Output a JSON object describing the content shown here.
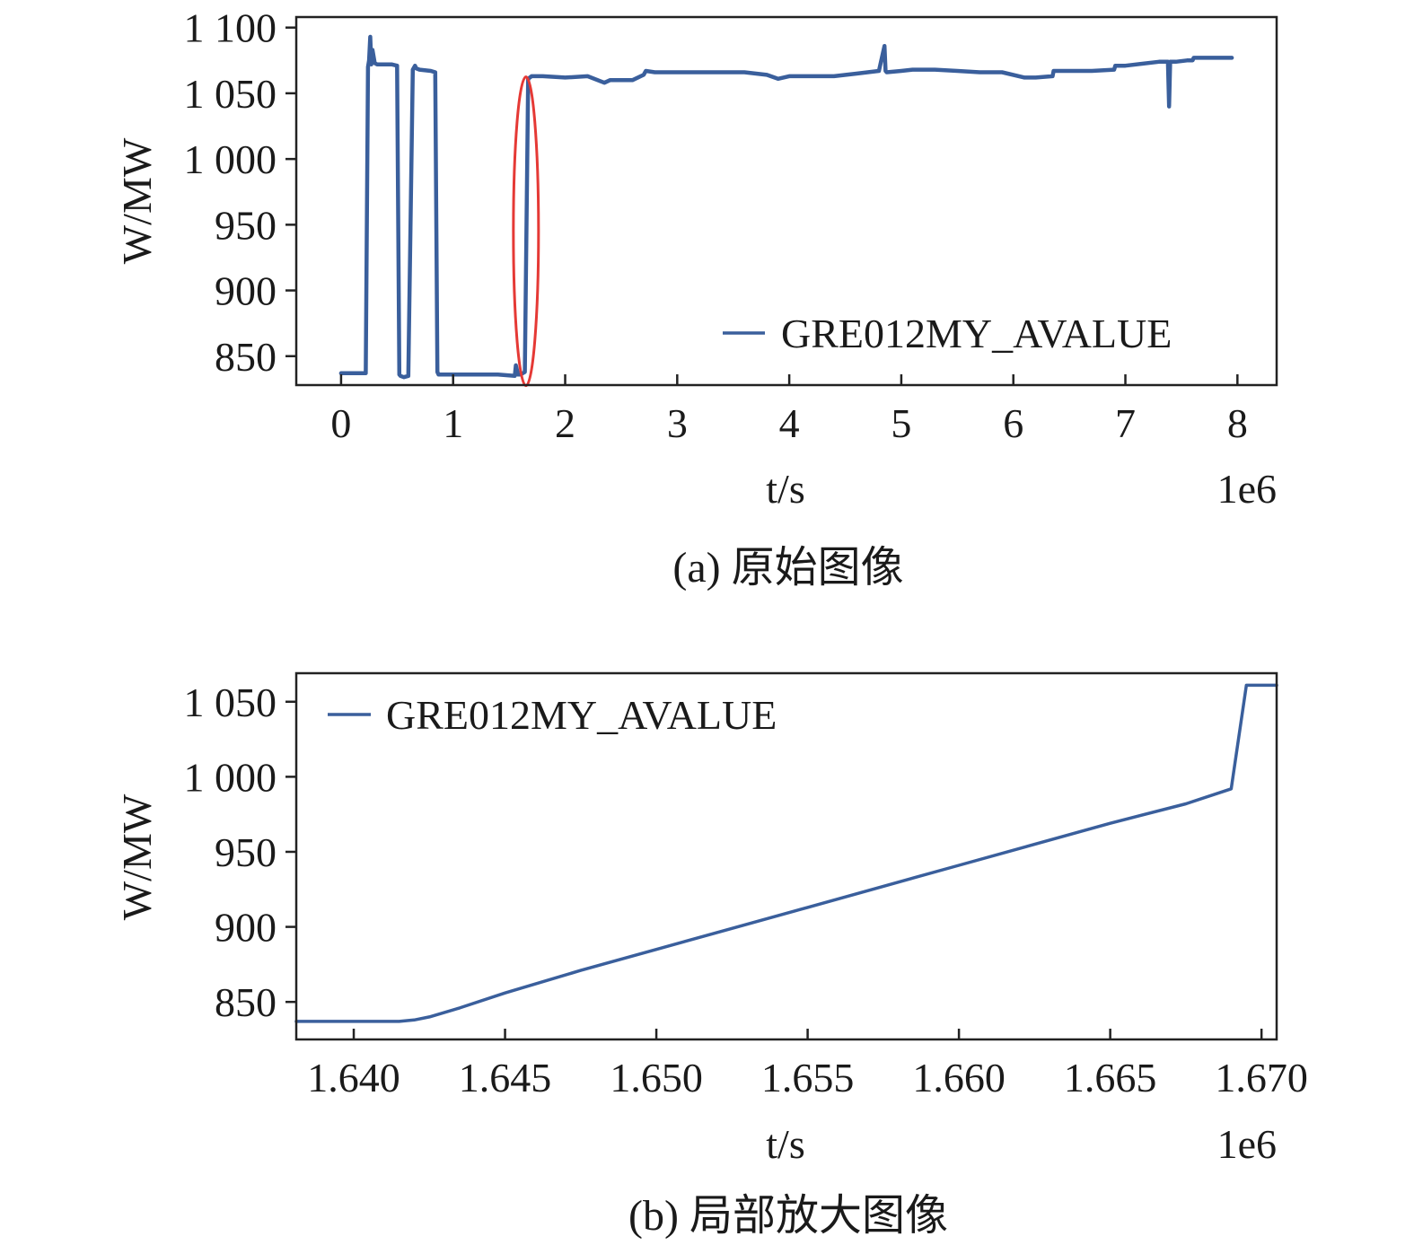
{
  "figure": {
    "caption_a": "(a) 原始图像",
    "caption_b": "(b) 局部放大图像"
  },
  "chart_data": [
    {
      "type": "line",
      "panel": "a",
      "xlabel": "t/s",
      "ylabel": "W/MW",
      "x_scale_label": "1e6",
      "xlim": [
        -0.4,
        8.35
      ],
      "ylim": [
        828,
        1108
      ],
      "xticks": [
        0,
        1,
        2,
        3,
        4,
        5,
        6,
        7,
        8
      ],
      "xtick_labels": [
        "0",
        "1",
        "2",
        "3",
        "4",
        "5",
        "6",
        "7",
        "8"
      ],
      "yticks": [
        850,
        900,
        950,
        1000,
        1050,
        1100
      ],
      "ytick_labels": [
        "850",
        "900",
        "950",
        "1 000",
        "1 050",
        "1 100"
      ],
      "legend": {
        "position": "lower-right",
        "entries": [
          "GRE012MY_AVALUE"
        ]
      },
      "highlight_ellipse": {
        "x": 1.65,
        "y": 945,
        "color": "#e53935"
      },
      "series": [
        {
          "name": "GRE012MY_AVALUE",
          "color": "#3a5f9c",
          "x": [
            0.0,
            0.22,
            0.24,
            0.25,
            0.26,
            0.27,
            0.28,
            0.3,
            0.32,
            0.4,
            0.45,
            0.5,
            0.52,
            0.53,
            0.56,
            0.6,
            0.64,
            0.66,
            0.67,
            0.7,
            0.8,
            0.84,
            0.86,
            0.87,
            0.9,
            1.0,
            1.2,
            1.4,
            1.55,
            1.56,
            1.58,
            1.6,
            1.64,
            1.67,
            1.7,
            1.8,
            2.0,
            2.2,
            2.35,
            2.4,
            2.5,
            2.6,
            2.7,
            2.72,
            2.8,
            3.0,
            3.2,
            3.4,
            3.6,
            3.8,
            3.9,
            4.0,
            4.2,
            4.4,
            4.6,
            4.8,
            4.85,
            4.86,
            4.87,
            5.0,
            5.1,
            5.3,
            5.5,
            5.7,
            5.9,
            6.1,
            6.2,
            6.35,
            6.36,
            6.5,
            6.7,
            6.9,
            6.91,
            7.0,
            7.3,
            7.38,
            7.39,
            7.4,
            7.45,
            7.55,
            7.6,
            7.61,
            7.75,
            7.9,
            7.95
          ],
          "y": [
            837,
            837,
            1070,
            1075,
            1093,
            1072,
            1083,
            1073,
            1072,
            1072,
            1072,
            1071,
            836,
            835,
            834,
            835,
            1068,
            1071,
            1069,
            1068,
            1067,
            1066,
            838,
            836,
            836,
            836,
            836,
            836,
            835,
            843,
            836,
            836,
            838,
            1061,
            1063,
            1063,
            1062,
            1063,
            1058,
            1060,
            1060,
            1060,
            1064,
            1067,
            1066,
            1066,
            1066,
            1066,
            1066,
            1064,
            1061,
            1063,
            1063,
            1063,
            1065,
            1067,
            1086,
            1067,
            1066,
            1067,
            1068,
            1068,
            1067,
            1066,
            1066,
            1062,
            1062,
            1063,
            1067,
            1067,
            1067,
            1068,
            1071,
            1071,
            1074,
            1074,
            1040,
            1074,
            1074,
            1075,
            1075,
            1077,
            1077,
            1077,
            1077
          ]
        }
      ]
    },
    {
      "type": "line",
      "panel": "b",
      "xlabel": "t/s",
      "ylabel": "W/MW",
      "x_scale_label": "1e6",
      "xlim": [
        1.6381,
        1.6705
      ],
      "ylim": [
        825,
        1069
      ],
      "xticks": [
        1.64,
        1.645,
        1.65,
        1.655,
        1.66,
        1.665,
        1.67
      ],
      "xtick_labels": [
        "1.640",
        "1.645",
        "1.650",
        "1.655",
        "1.660",
        "1.665",
        "1.670"
      ],
      "yticks": [
        850,
        900,
        950,
        1000,
        1050
      ],
      "ytick_labels": [
        "850",
        "900",
        "950",
        "1 000",
        "1 050"
      ],
      "legend": {
        "position": "top-left",
        "entries": [
          "GRE012MY_AVALUE"
        ]
      },
      "series": [
        {
          "name": "GRE012MY_AVALUE",
          "color": "#3a5f9c",
          "x": [
            1.6381,
            1.6395,
            1.6415,
            1.642,
            1.6425,
            1.6435,
            1.645,
            1.6475,
            1.65,
            1.6525,
            1.655,
            1.6575,
            1.66,
            1.6625,
            1.665,
            1.6675,
            1.669,
            1.6695,
            1.6705
          ],
          "y": [
            837,
            837,
            837,
            838,
            840,
            846,
            856,
            871,
            885,
            899,
            913,
            927,
            941,
            955,
            969,
            982,
            992,
            1061,
            1061
          ]
        }
      ]
    }
  ]
}
